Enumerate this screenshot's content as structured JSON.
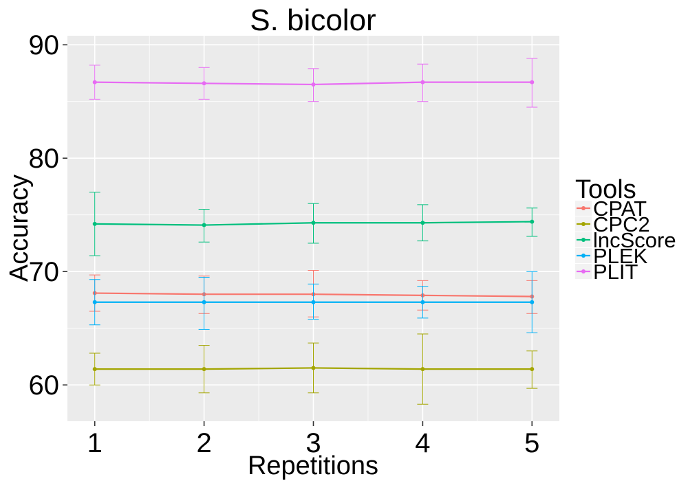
{
  "chart_data": {
    "type": "line",
    "title": "S. bicolor",
    "xlabel": "Repetitions",
    "ylabel": "Accuracy",
    "x": [
      1,
      2,
      3,
      4,
      5
    ],
    "x_tick_labels": [
      "1",
      "2",
      "3",
      "4",
      "5"
    ],
    "xlim": [
      0.75,
      5.25
    ],
    "ylim": [
      56.8,
      90.8
    ],
    "y_ticks": [
      60,
      70,
      80,
      90
    ],
    "y_tick_labels": [
      "60",
      "70",
      "80",
      "90"
    ],
    "grid": true,
    "legend_title": "Tools",
    "legend_position": "right",
    "series": [
      {
        "name": "CPAT",
        "color": "#F8766D",
        "values": [
          68.1,
          68.0,
          68.0,
          67.9,
          67.8
        ],
        "lower": [
          66.5,
          66.3,
          66.0,
          66.6,
          66.3
        ],
        "upper": [
          69.7,
          69.6,
          70.1,
          69.2,
          69.2
        ]
      },
      {
        "name": "CPC2",
        "color": "#A3A500",
        "values": [
          61.4,
          61.4,
          61.5,
          61.4,
          61.4
        ],
        "lower": [
          60.0,
          59.3,
          59.3,
          58.3,
          59.7
        ],
        "upper": [
          62.8,
          63.5,
          63.7,
          64.5,
          63.0
        ]
      },
      {
        "name": "lncScore",
        "color": "#00BF7D",
        "values": [
          74.2,
          74.1,
          74.3,
          74.3,
          74.4
        ],
        "lower": [
          71.4,
          72.6,
          72.5,
          72.7,
          73.1
        ],
        "upper": [
          77.0,
          75.5,
          76.0,
          75.9,
          75.6
        ]
      },
      {
        "name": "PLEK",
        "color": "#00B0F6",
        "values": [
          67.3,
          67.3,
          67.3,
          67.3,
          67.3
        ],
        "lower": [
          65.3,
          64.9,
          65.8,
          65.9,
          64.6
        ],
        "upper": [
          69.3,
          69.5,
          68.9,
          68.7,
          70.0
        ]
      },
      {
        "name": "PLIT",
        "color": "#E76BF3",
        "values": [
          86.7,
          86.6,
          86.5,
          86.7,
          86.7
        ],
        "lower": [
          85.2,
          85.2,
          85.0,
          85.0,
          84.5
        ],
        "upper": [
          88.2,
          88.0,
          87.9,
          88.3,
          88.8
        ]
      }
    ]
  }
}
